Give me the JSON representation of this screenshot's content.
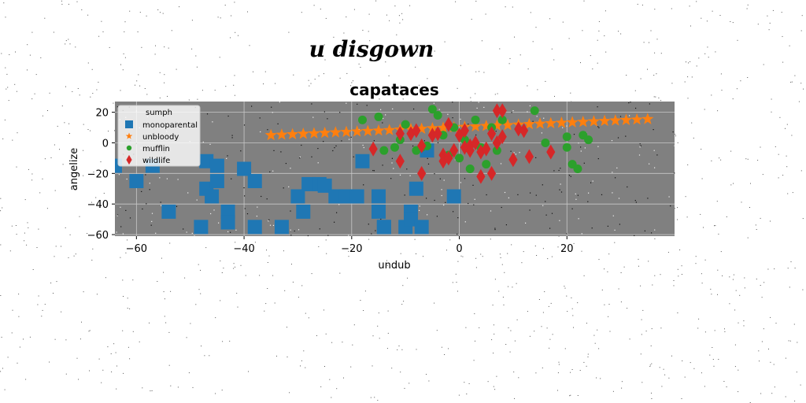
{
  "figure": {
    "suptitle": "u disgown",
    "background_color": "#ffffff",
    "noise_color": "#555555"
  },
  "chart_data": {
    "type": "scatter",
    "title": "capataces",
    "xlabel": "undub",
    "ylabel": "angelize",
    "xlim": [
      -64,
      40
    ],
    "ylim": [
      -61,
      27
    ],
    "xticks": [
      -60,
      -40,
      -20,
      0,
      20
    ],
    "yticks": [
      -60,
      -40,
      -20,
      0,
      20
    ],
    "grid": true,
    "plot_background": "#808080",
    "grid_color": "#c8c8c8",
    "legend": {
      "title": "sumph",
      "position": "top-left"
    },
    "series": [
      {
        "name": "monoparental",
        "marker": "square",
        "color": "#1f77b4",
        "points": [
          [
            -64,
            -15
          ],
          [
            -60,
            -25
          ],
          [
            -57,
            -15
          ],
          [
            -54,
            -45
          ],
          [
            -48,
            -55
          ],
          [
            -47,
            -12
          ],
          [
            -47,
            -30
          ],
          [
            -46,
            -35
          ],
          [
            -45,
            -15
          ],
          [
            -45,
            -25
          ],
          [
            -43,
            -45
          ],
          [
            -43,
            -52
          ],
          [
            -40,
            -17
          ],
          [
            -38,
            -25
          ],
          [
            -38,
            -55
          ],
          [
            -33,
            -55
          ],
          [
            -30,
            -35
          ],
          [
            -29,
            -45
          ],
          [
            -28,
            -27
          ],
          [
            -26,
            -27
          ],
          [
            -25,
            -28
          ],
          [
            -23,
            -35
          ],
          [
            -21,
            -35
          ],
          [
            -19,
            -35
          ],
          [
            -18,
            -12
          ],
          [
            -15,
            -35
          ],
          [
            -15,
            -45
          ],
          [
            -14,
            -55
          ],
          [
            -14,
            -55
          ],
          [
            -10,
            -55
          ],
          [
            -9,
            -45
          ],
          [
            -9,
            -50
          ],
          [
            -8,
            -30
          ],
          [
            -7,
            -55
          ],
          [
            -6,
            -5
          ],
          [
            -1,
            -35
          ]
        ]
      },
      {
        "name": "unbloody",
        "marker": "star",
        "color": "#ff7f0e",
        "points": [
          [
            -35,
            5
          ],
          [
            -33,
            5.3
          ],
          [
            -31,
            5.6
          ],
          [
            -29,
            5.9
          ],
          [
            -27,
            6.2
          ],
          [
            -25,
            6.5
          ],
          [
            -23,
            6.8
          ],
          [
            -21,
            7.1
          ],
          [
            -19,
            7.4
          ],
          [
            -17,
            7.7
          ],
          [
            -15,
            8
          ],
          [
            -13,
            8.3
          ],
          [
            -11,
            8.6
          ],
          [
            -9,
            8.9
          ],
          [
            -7,
            9.2
          ],
          [
            -5,
            9.5
          ],
          [
            -3,
            9.8
          ],
          [
            -1,
            10.1
          ],
          [
            1,
            10.4
          ],
          [
            3,
            10.7
          ],
          [
            5,
            11
          ],
          [
            7,
            11.3
          ],
          [
            9,
            11.6
          ],
          [
            11,
            11.9
          ],
          [
            13,
            12.2
          ],
          [
            15,
            12.5
          ],
          [
            17,
            12.8
          ],
          [
            19,
            13.1
          ],
          [
            21,
            13.4
          ],
          [
            23,
            13.7
          ],
          [
            25,
            14
          ],
          [
            27,
            14.3
          ],
          [
            29,
            14.6
          ],
          [
            31,
            14.9
          ],
          [
            33,
            15.2
          ],
          [
            35,
            15.5
          ]
        ]
      },
      {
        "name": "mufflin",
        "marker": "circle",
        "color": "#2ca02c",
        "points": [
          [
            -18,
            15
          ],
          [
            -15,
            17
          ],
          [
            -14,
            -5
          ],
          [
            -12,
            -3
          ],
          [
            -11,
            2
          ],
          [
            -10,
            12
          ],
          [
            -8,
            -5
          ],
          [
            -7,
            -3
          ],
          [
            -6,
            -2
          ],
          [
            -5,
            22
          ],
          [
            -4,
            18
          ],
          [
            -3,
            5
          ],
          [
            -2,
            -8
          ],
          [
            -1,
            10
          ],
          [
            0,
            -10
          ],
          [
            1,
            2
          ],
          [
            2,
            -17
          ],
          [
            3,
            15
          ],
          [
            4,
            -3
          ],
          [
            5,
            -14
          ],
          [
            6,
            10
          ],
          [
            7,
            -5
          ],
          [
            8,
            15
          ],
          [
            14,
            21
          ],
          [
            16,
            0
          ],
          [
            20,
            4
          ],
          [
            20,
            -3
          ],
          [
            21,
            -14
          ],
          [
            22,
            -17
          ],
          [
            23,
            5
          ],
          [
            24,
            2
          ]
        ]
      },
      {
        "name": "wildlife",
        "marker": "diamond",
        "color": "#d62728",
        "points": [
          [
            -16,
            -4
          ],
          [
            -11,
            6
          ],
          [
            -11,
            -12
          ],
          [
            -9,
            6
          ],
          [
            -8,
            8
          ],
          [
            -7,
            -2
          ],
          [
            -7,
            -20
          ],
          [
            -5,
            5
          ],
          [
            -4,
            6
          ],
          [
            -3,
            -8
          ],
          [
            -3,
            -12
          ],
          [
            -2,
            12
          ],
          [
            -2,
            -10
          ],
          [
            -1,
            -5
          ],
          [
            0,
            5
          ],
          [
            1,
            8
          ],
          [
            1,
            -3
          ],
          [
            2,
            -5
          ],
          [
            2,
            -2
          ],
          [
            3,
            0
          ],
          [
            4,
            -22
          ],
          [
            4,
            -6
          ],
          [
            5,
            -4
          ],
          [
            6,
            -20
          ],
          [
            6,
            6
          ],
          [
            7,
            21
          ],
          [
            7,
            0
          ],
          [
            8,
            4
          ],
          [
            8,
            21
          ],
          [
            10,
            -11
          ],
          [
            11,
            9
          ],
          [
            12,
            8
          ],
          [
            13,
            -9
          ],
          [
            17,
            -6
          ]
        ]
      }
    ]
  }
}
